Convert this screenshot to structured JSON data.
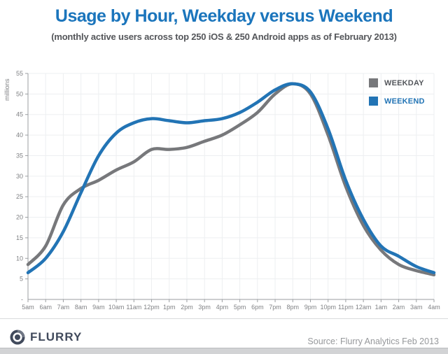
{
  "colors": {
    "title_blue": "#1b75bc",
    "weekday_gray": "#77787b",
    "weekend_blue": "#2274b5",
    "logo_navy": "#414a5c",
    "axis_text": "#808285",
    "gridline": "#edeff1"
  },
  "chart_data": {
    "type": "line",
    "title": "Usage by Hour, Weekday versus Weekend",
    "subtitle": "(monthly active users across top 250 iOS & 250 Android apps as of February 2013)",
    "ylabel": "millions",
    "ylim": [
      0,
      55
    ],
    "ytick_step": 5,
    "zero_tick_label": "-",
    "grid": true,
    "legend_position": "top-right",
    "categories": [
      "5am",
      "6am",
      "7am",
      "8am",
      "9am",
      "10am",
      "11am",
      "12pm",
      "1pm",
      "2pm",
      "3pm",
      "4pm",
      "5pm",
      "6pm",
      "7pm",
      "8pm",
      "9pm",
      "10pm",
      "11pm",
      "12am",
      "1am",
      "2am",
      "3am",
      "4am"
    ],
    "series": [
      {
        "name": "WEEKDAY",
        "color": "#77787b",
        "label_color": "#54575c",
        "values": [
          8.5,
          13,
          23,
          27,
          29,
          31.5,
          33.5,
          36.5,
          36.5,
          37,
          38.5,
          40,
          42.5,
          45.5,
          50,
          52.5,
          50,
          40,
          27.5,
          18,
          12,
          8.5,
          7,
          6
        ]
      },
      {
        "name": "WEEKEND",
        "color": "#2274b5",
        "label_color": "#2274b5",
        "values": [
          6.5,
          10,
          16.5,
          26,
          35,
          40.5,
          43,
          44,
          43.5,
          43,
          43.5,
          44,
          45.5,
          48,
          51,
          52.5,
          50.5,
          41.5,
          29,
          19.5,
          13,
          10.5,
          8,
          6.5
        ]
      }
    ]
  },
  "footer": {
    "logo_text": "FLURRY",
    "source": "Source: Flurry Analytics Feb 2013"
  }
}
